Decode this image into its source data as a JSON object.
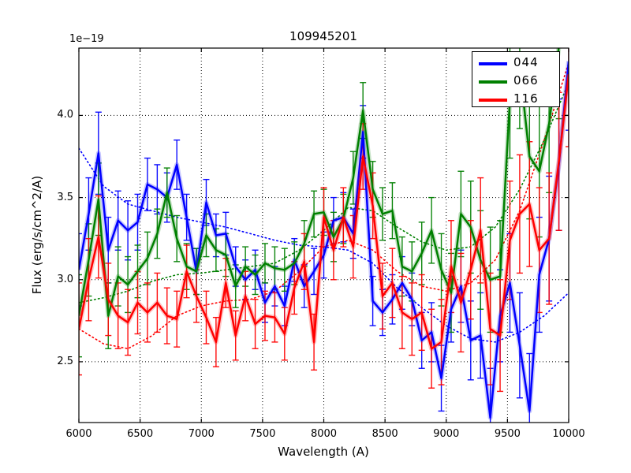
{
  "window": {
    "title": "109945201 spectra figure"
  },
  "chart_data": {
    "type": "line",
    "title": "109945201",
    "xlabel": "Wavelength (A)",
    "ylabel": "Flux (erg/s/cm^2/A)",
    "offset_text": "1e−19",
    "xlim": [
      6000,
      10000
    ],
    "ylim": [
      2.13,
      4.41
    ],
    "grid": true,
    "xticks": [
      6000,
      6500,
      7000,
      7500,
      8000,
      8500,
      9000,
      9500,
      10000
    ],
    "xtick_labels": [
      "6000",
      "6500",
      "7000",
      "7500",
      "8000",
      "8500",
      "9000",
      "9500",
      "10000"
    ],
    "yticks": [
      2.5,
      3.0,
      3.5,
      4.0
    ],
    "ytick_labels": [
      "2.5",
      "3.0",
      "3.5",
      "4.0"
    ],
    "legend_position": "upper right",
    "wavelengths": [
      6000,
      6080,
      6160,
      6240,
      6320,
      6400,
      6480,
      6560,
      6640,
      6720,
      6800,
      6880,
      6960,
      7040,
      7120,
      7200,
      7280,
      7360,
      7440,
      7520,
      7600,
      7680,
      7760,
      7840,
      7920,
      8000,
      8080,
      8160,
      8240,
      8320,
      8400,
      8480,
      8560,
      8640,
      8720,
      8800,
      8880,
      8960,
      9040,
      9120,
      9200,
      9280,
      9360,
      9440,
      9520,
      9600,
      9680,
      9760,
      9840,
      9920,
      10000
    ],
    "series": [
      {
        "name": "044",
        "color": "#0000ff",
        "values": [
          3.06,
          3.4,
          3.77,
          3.18,
          3.36,
          3.3,
          3.35,
          3.58,
          3.55,
          3.5,
          3.7,
          3.38,
          3.05,
          3.47,
          3.27,
          3.28,
          3.08,
          3.0,
          3.06,
          2.86,
          2.96,
          2.84,
          3.12,
          2.96,
          3.05,
          3.15,
          3.36,
          3.38,
          3.28,
          3.9,
          2.87,
          2.8,
          2.88,
          2.98,
          2.88,
          2.63,
          2.68,
          2.4,
          2.82,
          2.96,
          2.63,
          2.66,
          2.16,
          2.78,
          2.98,
          2.6,
          2.2,
          3.03,
          3.25,
          3.7,
          4.33
        ],
        "errors": [
          0.22,
          0.22,
          0.25,
          0.2,
          0.18,
          0.18,
          0.17,
          0.16,
          0.15,
          0.15,
          0.15,
          0.14,
          0.14,
          0.14,
          0.13,
          0.13,
          0.12,
          0.12,
          0.12,
          0.12,
          0.12,
          0.12,
          0.13,
          0.13,
          0.14,
          0.14,
          0.14,
          0.15,
          0.15,
          0.16,
          0.15,
          0.14,
          0.15,
          0.16,
          0.16,
          0.17,
          0.18,
          0.2,
          0.2,
          0.22,
          0.24,
          0.26,
          0.3,
          0.28,
          0.3,
          0.32,
          0.35,
          0.35,
          0.38,
          0.4,
          0.42
        ]
      },
      {
        "name": "066",
        "color": "#008000",
        "values": [
          2.78,
          3.12,
          3.49,
          2.78,
          3.02,
          2.97,
          3.05,
          3.13,
          3.28,
          3.53,
          3.25,
          3.08,
          3.05,
          3.27,
          3.18,
          3.15,
          2.96,
          3.08,
          3.03,
          3.1,
          3.07,
          3.06,
          3.1,
          3.22,
          3.4,
          3.41,
          3.26,
          3.37,
          3.62,
          4.03,
          3.55,
          3.4,
          3.42,
          3.08,
          3.05,
          3.16,
          3.3,
          3.06,
          2.92,
          3.4,
          3.32,
          3.12,
          3.0,
          3.02,
          4.1,
          4.3,
          3.75,
          3.66,
          3.95,
          4.42,
          4.45
        ],
        "errors": [
          0.25,
          0.22,
          0.22,
          0.2,
          0.18,
          0.17,
          0.16,
          0.16,
          0.15,
          0.15,
          0.14,
          0.14,
          0.14,
          0.13,
          0.13,
          0.13,
          0.13,
          0.12,
          0.12,
          0.12,
          0.13,
          0.13,
          0.13,
          0.14,
          0.14,
          0.14,
          0.15,
          0.15,
          0.16,
          0.17,
          0.17,
          0.16,
          0.17,
          0.18,
          0.18,
          0.19,
          0.2,
          0.22,
          0.24,
          0.26,
          0.28,
          0.3,
          0.32,
          0.34,
          0.36,
          0.38,
          0.38,
          0.4,
          0.42,
          0.44,
          0.45
        ]
      },
      {
        "name": "116",
        "color": "#ff0000",
        "values": [
          2.7,
          3.0,
          3.26,
          2.88,
          2.78,
          2.74,
          2.86,
          2.8,
          2.86,
          2.78,
          2.76,
          3.05,
          2.9,
          2.77,
          2.62,
          2.98,
          2.66,
          2.9,
          2.73,
          2.78,
          2.77,
          2.67,
          2.95,
          3.11,
          2.62,
          3.38,
          3.18,
          3.38,
          3.2,
          3.75,
          3.45,
          2.9,
          2.98,
          2.8,
          2.76,
          2.8,
          2.58,
          2.62,
          3.08,
          2.86,
          3.06,
          3.3,
          2.7,
          2.66,
          3.24,
          3.4,
          3.46,
          3.18,
          3.25,
          3.72,
          4.25
        ],
        "errors": [
          0.28,
          0.25,
          0.25,
          0.22,
          0.2,
          0.2,
          0.19,
          0.18,
          0.18,
          0.17,
          0.17,
          0.16,
          0.16,
          0.16,
          0.15,
          0.15,
          0.15,
          0.15,
          0.15,
          0.15,
          0.15,
          0.16,
          0.16,
          0.17,
          0.17,
          0.18,
          0.18,
          0.18,
          0.19,
          0.2,
          0.2,
          0.2,
          0.21,
          0.22,
          0.22,
          0.23,
          0.24,
          0.26,
          0.28,
          0.3,
          0.3,
          0.32,
          0.34,
          0.34,
          0.36,
          0.36,
          0.38,
          0.38,
          0.4,
          0.42,
          0.44
        ]
      }
    ],
    "smooth_x": [
      6000,
      6200,
      6400,
      6600,
      6800,
      7000,
      7200,
      7400,
      7600,
      7800,
      8000,
      8200,
      8400,
      8600,
      8800,
      9000,
      9200,
      9400,
      9600,
      9800,
      10000
    ],
    "smooth_series": [
      {
        "name": "044-smoothed",
        "color": "#0000ff",
        "values": [
          3.8,
          3.57,
          3.46,
          3.42,
          3.38,
          3.35,
          3.32,
          3.28,
          3.24,
          3.21,
          3.2,
          3.18,
          3.1,
          2.95,
          2.83,
          2.72,
          2.64,
          2.62,
          2.68,
          2.78,
          2.92
        ]
      },
      {
        "name": "066-smoothed",
        "color": "#008000",
        "values": [
          2.86,
          2.89,
          2.93,
          2.99,
          3.03,
          3.04,
          3.06,
          3.08,
          3.1,
          3.18,
          3.3,
          3.44,
          3.42,
          3.32,
          3.23,
          3.18,
          3.2,
          3.32,
          3.55,
          3.85,
          4.2
        ]
      },
      {
        "name": "116-smoothed",
        "color": "#ff0000",
        "values": [
          2.7,
          2.61,
          2.58,
          2.66,
          2.78,
          2.84,
          2.87,
          2.88,
          2.93,
          3.05,
          3.2,
          3.24,
          3.18,
          3.05,
          2.96,
          2.93,
          2.98,
          3.12,
          3.42,
          3.85,
          4.32
        ]
      }
    ]
  },
  "legend": {
    "entries": [
      {
        "label": "044",
        "color": "#0000ff"
      },
      {
        "label": "066",
        "color": "#008000"
      },
      {
        "label": "116",
        "color": "#ff0000"
      }
    ]
  },
  "style": {
    "grid_color": "#000000",
    "axes_color": "#000000",
    "background": "#ffffff"
  }
}
